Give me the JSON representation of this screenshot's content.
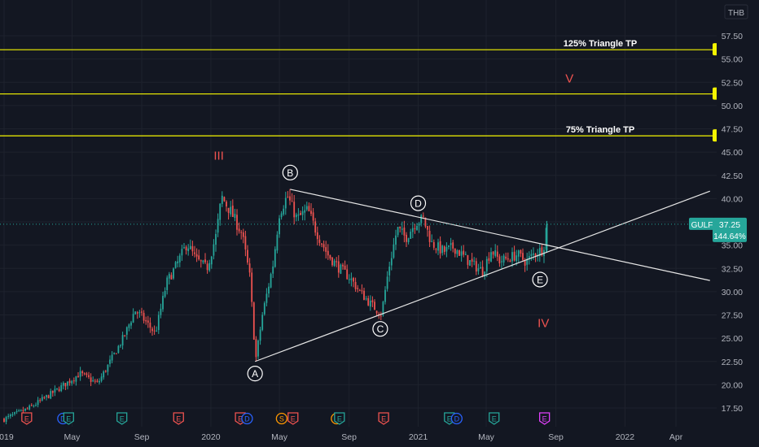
{
  "header": {
    "currency": "THB"
  },
  "chart_data": {
    "type": "candlestick",
    "symbol": "GULF",
    "currency": "THB",
    "last_price": "37.25",
    "change_label": "144.64%",
    "colors": {
      "background": "#131722",
      "up": "#26a69a",
      "down": "#ef5350",
      "grid": "#1e222d",
      "level_line": "#f5f500",
      "wave_label": "#ef5350",
      "trend_line": "#e6e6e6",
      "axis_text": "#b2b5be",
      "price_badge": "#26a69a"
    },
    "ylim": [
      15,
      60
    ],
    "y_ticks": [
      "17.50",
      "20.00",
      "22.50",
      "25.00",
      "27.50",
      "30.00",
      "32.50",
      "35.00",
      "37.50",
      "40.00",
      "42.50",
      "45.00",
      "47.50",
      "50.00",
      "52.50",
      "55.00",
      "57.50"
    ],
    "x_ticks": [
      "2019",
      "May",
      "Sep",
      "2020",
      "May",
      "Sep",
      "2021",
      "May",
      "Sep",
      "2022",
      "Apr"
    ],
    "price_path": [
      [
        "2019-01-01",
        16.3
      ],
      [
        "2019-02-15",
        17.5
      ],
      [
        "2019-04-01",
        19.3
      ],
      [
        "2019-05-15",
        21.2
      ],
      [
        "2019-06-15",
        20.1
      ],
      [
        "2019-07-01",
        21.8
      ],
      [
        "2019-08-01",
        25.2
      ],
      [
        "2019-08-20",
        28.0
      ],
      [
        "2019-09-01",
        27.3
      ],
      [
        "2019-09-25",
        25.5
      ],
      [
        "2019-10-15",
        31.0
      ],
      [
        "2019-11-01",
        32.8
      ],
      [
        "2019-11-20",
        35.2
      ],
      [
        "2019-12-05",
        33.5
      ],
      [
        "2019-12-25",
        32.5
      ],
      [
        "2020-01-10",
        36.0
      ],
      [
        "2020-01-20",
        40.2
      ],
      [
        "2020-02-05",
        38.6
      ],
      [
        "2020-02-25",
        36.2
      ],
      [
        "2020-03-10",
        31.5
      ],
      [
        "2020-03-20",
        22.6
      ],
      [
        "2020-04-01",
        27.5
      ],
      [
        "2020-04-20",
        33.0
      ],
      [
        "2020-05-01",
        38.5
      ],
      [
        "2020-05-15",
        40.3
      ],
      [
        "2020-06-01",
        37.8
      ],
      [
        "2020-06-20",
        38.8
      ],
      [
        "2020-07-05",
        36.5
      ],
      [
        "2020-07-25",
        34.0
      ],
      [
        "2020-08-15",
        32.5
      ],
      [
        "2020-09-01",
        31.6
      ],
      [
        "2020-09-20",
        30.0
      ],
      [
        "2020-10-10",
        28.6
      ],
      [
        "2020-10-28",
        27.6
      ],
      [
        "2020-11-10",
        32.5
      ],
      [
        "2020-11-25",
        36.8
      ],
      [
        "2020-12-10",
        35.8
      ],
      [
        "2020-12-28",
        37.5
      ],
      [
        "2021-01-10",
        37.8
      ],
      [
        "2021-01-25",
        35.2
      ],
      [
        "2021-02-15",
        34.3
      ],
      [
        "2021-03-05",
        34.8
      ],
      [
        "2021-03-25",
        33.6
      ],
      [
        "2021-04-10",
        32.8
      ],
      [
        "2021-04-25",
        32.2
      ],
      [
        "2021-05-10",
        34.5
      ],
      [
        "2021-05-25",
        33.3
      ],
      [
        "2021-06-10",
        33.6
      ],
      [
        "2021-06-25",
        34.0
      ],
      [
        "2021-07-10",
        33.2
      ],
      [
        "2021-07-25",
        34.1
      ],
      [
        "2021-08-10",
        34.6
      ],
      [
        "2021-08-16",
        37.25
      ]
    ],
    "horizontal_levels": [
      {
        "value": "56.00",
        "label": "125% Triangle TP"
      },
      {
        "value": "51.25",
        "label": ""
      },
      {
        "value": "46.75",
        "label": "75% Triangle TP"
      }
    ],
    "trend_lines": [
      {
        "from": [
          "2020-03-19",
          22.5
        ],
        "to": [
          "2022-05-31",
          40.8
        ]
      },
      {
        "from": [
          "2020-05-20",
          41.0
        ],
        "to": [
          "2022-05-31",
          31.2
        ]
      }
    ],
    "wave_points": [
      {
        "label": "A",
        "date": "2020-03-19",
        "value": 21.2
      },
      {
        "label": "B",
        "date": "2020-05-20",
        "value": 42.8
      },
      {
        "label": "C",
        "date": "2020-10-26",
        "value": 26.0
      },
      {
        "label": "D",
        "date": "2021-01-01",
        "value": 39.5
      },
      {
        "label": "E",
        "date": "2021-08-04",
        "value": 31.3
      }
    ],
    "wave_labels": [
      {
        "label": "III",
        "date": "2020-01-15",
        "value": 44.2
      },
      {
        "label": "IV",
        "date": "2021-08-10",
        "value": 26.2
      },
      {
        "label": "V",
        "date": "2021-09-25",
        "value": 52.5
      }
    ],
    "event_markers": [
      {
        "label": "E",
        "date": "2019-02-10",
        "color": "#ef5350"
      },
      {
        "label": "D",
        "date": "2019-04-15",
        "color": "#2962ff"
      },
      {
        "label": "E",
        "date": "2019-04-25",
        "color": "#26a69a"
      },
      {
        "label": "E",
        "date": "2019-07-28",
        "color": "#26a69a"
      },
      {
        "label": "E",
        "date": "2019-11-05",
        "color": "#ef5350"
      },
      {
        "label": "E",
        "date": "2020-02-22",
        "color": "#ef5350"
      },
      {
        "label": "D",
        "date": "2020-03-05",
        "color": "#2962ff"
      },
      {
        "label": "S",
        "date": "2020-05-05",
        "color": "#ff9800"
      },
      {
        "label": "E",
        "date": "2020-05-25",
        "color": "#ef5350"
      },
      {
        "label": "D",
        "date": "2020-08-10",
        "color": "#ff9800"
      },
      {
        "label": "E",
        "date": "2020-08-15",
        "color": "#26a69a"
      },
      {
        "label": "E",
        "date": "2020-11-01",
        "color": "#ef5350"
      },
      {
        "label": "E",
        "date": "2021-02-25",
        "color": "#26a69a"
      },
      {
        "label": "D",
        "date": "2021-03-10",
        "color": "#2962ff"
      },
      {
        "label": "E",
        "date": "2021-05-15",
        "color": "#26a69a"
      },
      {
        "label": "E",
        "date": "2021-08-12",
        "color": "#e040fb"
      }
    ]
  }
}
